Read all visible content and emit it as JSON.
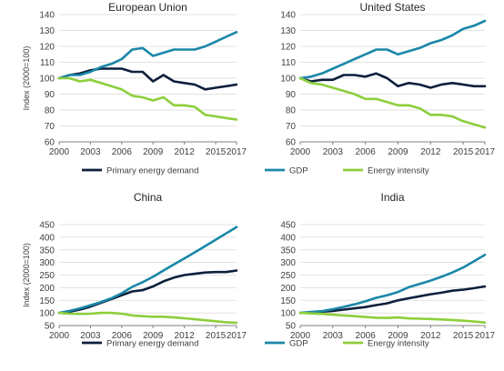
{
  "chart_data": [
    {
      "type": "line",
      "title": "European Union",
      "ylabel": "Index (2000=100)",
      "ylim": [
        60,
        140
      ],
      "yticks": [
        "60",
        "70",
        "80",
        "90",
        "100",
        "110",
        "120",
        "130",
        "140"
      ],
      "xticks": [
        "2000",
        "2003",
        "2006",
        "2009",
        "2012",
        "2015",
        "2017"
      ],
      "x": [
        2000,
        2001,
        2002,
        2003,
        2004,
        2005,
        2006,
        2007,
        2008,
        2009,
        2010,
        2011,
        2012,
        2013,
        2014,
        2015,
        2016,
        2017
      ],
      "series": [
        {
          "name": "Primary energy demand",
          "values": [
            100,
            102,
            103,
            105,
            106,
            106,
            106,
            104,
            104,
            98,
            102,
            98,
            97,
            96,
            93,
            94,
            95,
            96
          ]
        },
        {
          "name": "GDP",
          "values": [
            100,
            102,
            102,
            104,
            107,
            109,
            112,
            118,
            119,
            114,
            116,
            118,
            118,
            118,
            120,
            123,
            126,
            129
          ]
        },
        {
          "name": "Energy intensity",
          "values": [
            100,
            100,
            98,
            99,
            97,
            95,
            93,
            89,
            88,
            86,
            88,
            83,
            83,
            82,
            77,
            76,
            75,
            74
          ]
        }
      ]
    },
    {
      "type": "line",
      "title": "United States",
      "ylabel": "",
      "ylim": [
        60,
        140
      ],
      "yticks": [
        "60",
        "70",
        "80",
        "90",
        "100",
        "110",
        "120",
        "130",
        "140"
      ],
      "xticks": [
        "2000",
        "2003",
        "2006",
        "2009",
        "2012",
        "2015",
        "2017"
      ],
      "x": [
        2000,
        2001,
        2002,
        2003,
        2004,
        2005,
        2006,
        2007,
        2008,
        2009,
        2010,
        2011,
        2012,
        2013,
        2014,
        2015,
        2016,
        2017
      ],
      "series": [
        {
          "name": "Primary energy demand",
          "values": [
            100,
            98,
            99,
            99,
            102,
            102,
            101,
            103,
            100,
            95,
            97,
            96,
            94,
            96,
            97,
            96,
            95,
            95
          ]
        },
        {
          "name": "GDP",
          "values": [
            100,
            101,
            103,
            106,
            109,
            112,
            115,
            118,
            118,
            115,
            117,
            119,
            122,
            124,
            127,
            131,
            133,
            136
          ]
        },
        {
          "name": "Energy intensity",
          "values": [
            100,
            97,
            96,
            94,
            92,
            90,
            87,
            87,
            85,
            83,
            83,
            81,
            77,
            77,
            76,
            73,
            71,
            69
          ]
        }
      ]
    },
    {
      "type": "line",
      "title": "China",
      "ylabel": "Index (2000=100)",
      "ylim": [
        50,
        450
      ],
      "yticks": [
        "50",
        "100",
        "150",
        "200",
        "250",
        "300",
        "350",
        "400",
        "450"
      ],
      "xticks": [
        "2000",
        "2003",
        "2006",
        "2009",
        "2012",
        "2015",
        "2017"
      ],
      "x": [
        2000,
        2001,
        2002,
        2003,
        2004,
        2005,
        2006,
        2007,
        2008,
        2009,
        2010,
        2011,
        2012,
        2013,
        2014,
        2015,
        2016,
        2017
      ],
      "series": [
        {
          "name": "Primary energy demand",
          "values": [
            100,
            105,
            113,
            125,
            140,
            155,
            170,
            185,
            190,
            205,
            225,
            240,
            250,
            255,
            260,
            262,
            262,
            268
          ]
        },
        {
          "name": "GDP",
          "values": [
            100,
            108,
            118,
            130,
            143,
            158,
            178,
            203,
            222,
            243,
            268,
            292,
            316,
            340,
            365,
            390,
            415,
            440
          ]
        },
        {
          "name": "Energy intensity",
          "values": [
            100,
            97,
            96,
            97,
            100,
            100,
            97,
            90,
            87,
            85,
            85,
            82,
            79,
            75,
            71,
            67,
            63,
            61
          ]
        }
      ]
    },
    {
      "type": "line",
      "title": "India",
      "ylabel": "",
      "ylim": [
        50,
        450
      ],
      "yticks": [
        "50",
        "100",
        "150",
        "200",
        "250",
        "300",
        "350",
        "400",
        "450"
      ],
      "xticks": [
        "2000",
        "2003",
        "2006",
        "2009",
        "2012",
        "2015",
        "2017"
      ],
      "x": [
        2000,
        2001,
        2002,
        2003,
        2004,
        2005,
        2006,
        2007,
        2008,
        2009,
        2010,
        2011,
        2012,
        2013,
        2014,
        2015,
        2016,
        2017
      ],
      "series": [
        {
          "name": "Primary energy demand",
          "values": [
            100,
            102,
            105,
            108,
            113,
            118,
            123,
            131,
            138,
            150,
            158,
            166,
            174,
            180,
            188,
            192,
            198,
            205
          ]
        },
        {
          "name": "GDP",
          "values": [
            100,
            104,
            107,
            115,
            124,
            134,
            146,
            160,
            170,
            183,
            202,
            215,
            228,
            243,
            260,
            280,
            305,
            330
          ]
        },
        {
          "name": "Energy intensity",
          "values": [
            100,
            98,
            96,
            93,
            90,
            87,
            84,
            81,
            80,
            82,
            78,
            77,
            76,
            74,
            72,
            69,
            66,
            62
          ]
        }
      ]
    }
  ],
  "legends": [
    {
      "items": [
        {
          "label": "Primary energy demand",
          "color": "#0d1f3c"
        },
        {
          "label": "GDP",
          "color": "#1a87a8"
        },
        {
          "label": "Energy intensity",
          "color": "#8ccf3c"
        }
      ]
    },
    {
      "items": [
        {
          "label": "Primary energy demand",
          "color": "#0d1f3c"
        },
        {
          "label": "GDP",
          "color": "#1a87a8"
        },
        {
          "label": "Energy intensity",
          "color": "#8ccf3c"
        }
      ]
    }
  ],
  "colors": {
    "Primary energy demand": "#0d1f3c",
    "GDP": "#1a87a8",
    "Energy intensity": "#8ccf3c",
    "gridline": "#d9d9d9",
    "axis": "#7f7f7f"
  }
}
